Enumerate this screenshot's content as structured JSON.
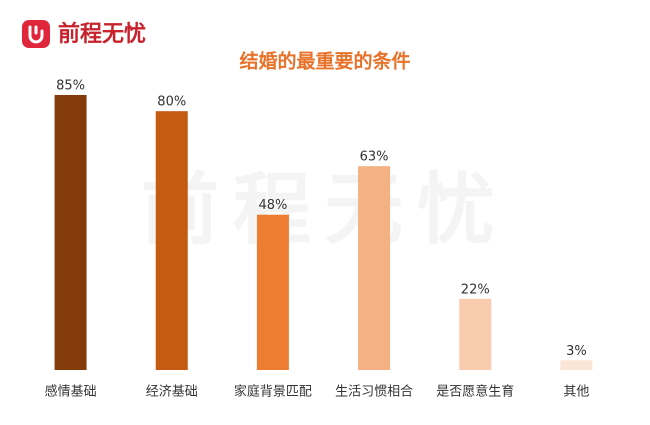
{
  "brand": "前程无忧",
  "chart_data": {
    "type": "bar",
    "title": "结婚的最重要的条件",
    "categories": [
      "感情基础",
      "经济基础",
      "家庭背景匹配",
      "生活习惯相合",
      "是否愿意生育",
      "其他"
    ],
    "values": [
      85,
      80,
      48,
      63,
      22,
      3
    ],
    "value_labels": [
      "85%",
      "80%",
      "48%",
      "63%",
      "22%",
      "3%"
    ],
    "colors": [
      "#843c0c",
      "#c55a11",
      "#ed7d31",
      "#f4b183",
      "#f8cbad",
      "#fbe5d6"
    ]
  }
}
